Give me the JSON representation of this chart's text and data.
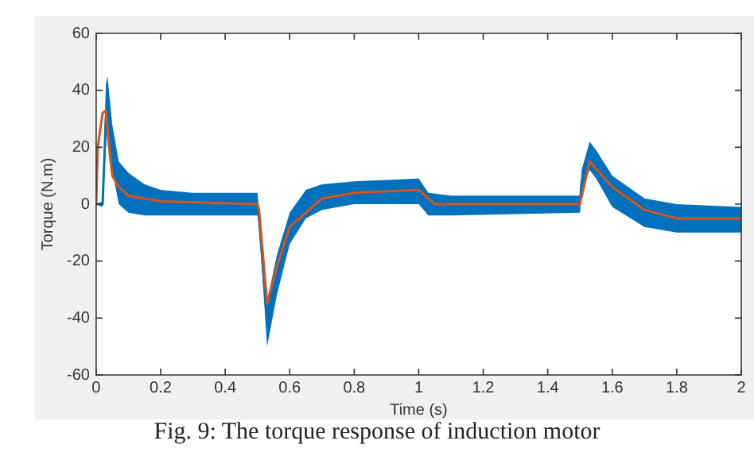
{
  "chart_data": {
    "type": "line",
    "xlabel": "Time (s)",
    "ylabel": "Torque (N.m)",
    "xlim": [
      0,
      2
    ],
    "ylim": [
      -60,
      60
    ],
    "xticks": [
      0,
      0.2,
      0.4,
      0.6,
      0.8,
      1,
      1.2,
      1.4,
      1.6,
      1.8,
      2
    ],
    "yticks": [
      -60,
      -40,
      -20,
      0,
      20,
      40,
      60
    ],
    "grid": false,
    "legend": false,
    "marker": "none",
    "line_style": "solid",
    "annotations": [
      "Fig. 9: The torque response of induction motor"
    ],
    "series": [
      {
        "color": "#0072bd",
        "x": [
          0,
          0.02,
          0.03,
          0.035,
          0.05,
          0.07,
          0.1,
          0.15,
          0.2,
          0.3,
          0.5,
          0.505,
          0.53,
          0.56,
          0.6,
          0.65,
          0.7,
          0.8,
          1.0,
          1.03,
          1.1,
          1.5,
          1.505,
          1.53,
          1.55,
          1.6,
          1.7,
          1.8,
          2.0
        ],
        "values": [
          0,
          0,
          30,
          38,
          20,
          8,
          4,
          1,
          0,
          0,
          0,
          -5,
          -40,
          -25,
          -8,
          0,
          3,
          4,
          4,
          0,
          0,
          0,
          8,
          17,
          15,
          5,
          -3,
          -5,
          -5
        ],
        "lower": [
          0,
          -1,
          20,
          28,
          12,
          0,
          -3,
          -4,
          -4,
          -4,
          -4,
          -8,
          -50,
          -32,
          -14,
          -5,
          -2,
          0,
          0,
          -4,
          -4,
          -3,
          5,
          12,
          9,
          -1,
          -8,
          -10,
          -10
        ],
        "upper": [
          0,
          1,
          42,
          45,
          28,
          15,
          11,
          7,
          5,
          4,
          4,
          -2,
          -34,
          -18,
          -3,
          5,
          7,
          8,
          9,
          4,
          3,
          3,
          12,
          22,
          19,
          10,
          2,
          0,
          -1
        ]
      },
      {
        "color": "#d95319",
        "x": [
          0,
          0.005,
          0.02,
          0.03,
          0.04,
          0.05,
          0.07,
          0.1,
          0.2,
          0.5,
          0.505,
          0.53,
          0.56,
          0.6,
          0.7,
          0.8,
          1.0,
          1.05,
          1.5,
          1.53,
          1.6,
          1.7,
          1.8,
          2.0
        ],
        "values": [
          0,
          20,
          32,
          33,
          20,
          10,
          6,
          3,
          1,
          0,
          -2,
          -35,
          -22,
          -8,
          2,
          4,
          5,
          0,
          0,
          15,
          6,
          -2,
          -5,
          -5
        ]
      }
    ]
  }
}
